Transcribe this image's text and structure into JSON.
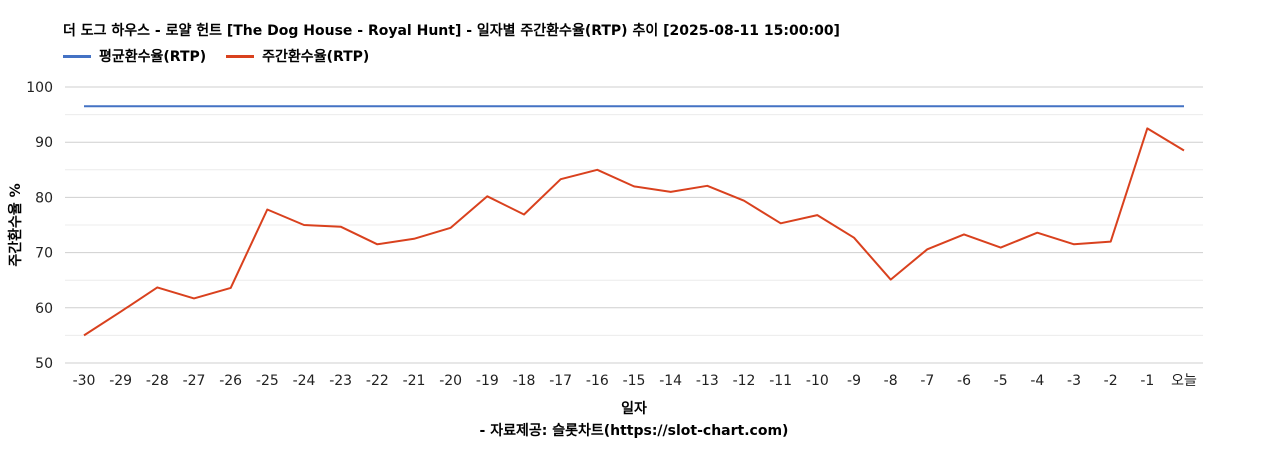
{
  "chart_data": {
    "type": "line",
    "title": "더 도그 하우스 - 로얄 헌트 [The Dog House - Royal Hunt] - 일자별 주간환수율(RTP) 추이 [2025-08-11 15:00:00]",
    "xlabel": "일자",
    "ylabel": "주간환수율 %",
    "source": "- 자료제공: 슬롯차트(https://slot-chart.com)",
    "ylim": [
      50,
      100
    ],
    "yticks": [
      50,
      60,
      70,
      80,
      90,
      100
    ],
    "grid": true,
    "legend_position": "top-left",
    "categories": [
      "-30",
      "-29",
      "-28",
      "-27",
      "-26",
      "-25",
      "-24",
      "-23",
      "-22",
      "-21",
      "-20",
      "-19",
      "-18",
      "-17",
      "-16",
      "-15",
      "-14",
      "-13",
      "-12",
      "-11",
      "-10",
      "-9",
      "-8",
      "-7",
      "-6",
      "-5",
      "-4",
      "-3",
      "-2",
      "-1",
      "오늘"
    ],
    "series": [
      {
        "name": "평균환수율(RTP)",
        "color": "#4472c4",
        "values": [
          96.5,
          96.5,
          96.5,
          96.5,
          96.5,
          96.5,
          96.5,
          96.5,
          96.5,
          96.5,
          96.5,
          96.5,
          96.5,
          96.5,
          96.5,
          96.5,
          96.5,
          96.5,
          96.5,
          96.5,
          96.5,
          96.5,
          96.5,
          96.5,
          96.5,
          96.5,
          96.5,
          96.5,
          96.5,
          96.5,
          96.5
        ]
      },
      {
        "name": "주간환수율(RTP)",
        "color": "#d9411e",
        "values": [
          55.0,
          59.3,
          63.7,
          61.7,
          63.6,
          77.8,
          75.0,
          74.7,
          71.5,
          72.5,
          74.5,
          80.2,
          76.9,
          83.3,
          85.0,
          82.0,
          81.0,
          82.1,
          79.4,
          75.3,
          76.8,
          72.7,
          65.1,
          70.6,
          73.3,
          70.9,
          73.6,
          71.5,
          72.0,
          92.5,
          88.5
        ]
      }
    ]
  }
}
